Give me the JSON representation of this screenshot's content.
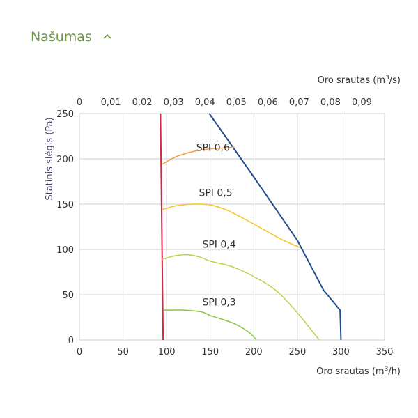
{
  "section": {
    "title": "Našumas",
    "toggle_icon": "chevron-up-icon"
  },
  "colors": {
    "title": "#6f9446",
    "grid": "#cccccc",
    "axis_text": "#333333",
    "ylabel": "#4a3d66",
    "max_curve": "#1f4e8c",
    "limit_line": "#d9263f",
    "spi_0_6": "#f39a3c",
    "spi_0_5": "#f6c41c",
    "spi_0_4": "#b7d44a",
    "spi_0_3": "#8cc63f"
  },
  "chart_data": {
    "type": "line",
    "xlabel_bottom": "Oro srautas (m3/h)",
    "xlabel_top": "Oro srautas (m3/s)",
    "ylabel": "Statinis slėgis (Pa)",
    "xlim": [
      0,
      350
    ],
    "ylim": [
      0,
      250
    ],
    "x_ticks": [
      "0",
      "50",
      "100",
      "150",
      "200",
      "250",
      "300",
      "350"
    ],
    "y_ticks": [
      "0",
      "50",
      "100",
      "150",
      "200",
      "250"
    ],
    "top_ticks": [
      "0",
      "0,01",
      "0,02",
      "0,03",
      "0,04",
      "0,05",
      "0,06",
      "0,07",
      "0,08",
      "0,09"
    ],
    "grid": true,
    "series": [
      {
        "key": "max",
        "x": [
          149,
          200,
          250,
          280,
          299,
          300
        ],
        "y": [
          250,
          180,
          110,
          55,
          33,
          0
        ]
      },
      {
        "key": "limit",
        "x": [
          93,
          96
        ],
        "y": [
          250,
          0
        ]
      },
      {
        "key": "spi_0_6",
        "name": "SPI 0,6",
        "x": [
          95,
          110,
          130,
          150,
          165,
          178
        ],
        "y": [
          194,
          202,
          208,
          211,
          212,
          213
        ]
      },
      {
        "key": "spi_0_5",
        "name": "SPI 0,5",
        "x": [
          95,
          110,
          130,
          150,
          170,
          200,
          230,
          253
        ],
        "y": [
          144,
          148,
          150,
          149,
          143,
          128,
          112,
          102
        ]
      },
      {
        "key": "spi_0_4",
        "name": "SPI 0,4",
        "x": [
          95,
          110,
          125,
          140,
          150,
          175,
          200,
          225,
          250,
          275
        ],
        "y": [
          89,
          93,
          94,
          91,
          87,
          81,
          70,
          55,
          30,
          0
        ]
      },
      {
        "key": "spi_0_3",
        "name": "SPI 0,3",
        "x": [
          96,
          105,
          120,
          140,
          150,
          160,
          180,
          195,
          203
        ],
        "y": [
          33,
          33,
          33,
          31,
          27,
          24,
          17,
          8,
          0
        ]
      }
    ]
  }
}
